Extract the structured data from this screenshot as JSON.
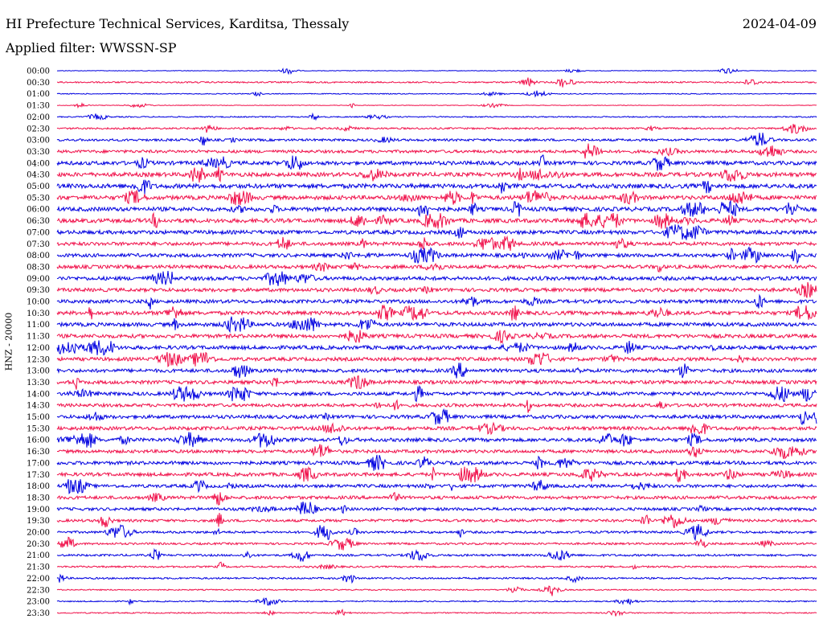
{
  "header": {
    "station": "HI Prefecture Technical Services, Karditsa, Thessaly",
    "date": "2024-04-09",
    "filter": "Applied filter: WWSSN-SP"
  },
  "axis": {
    "channel_label": "HNZ - 20000"
  },
  "colors": {
    "trace_a": "#0000e0",
    "trace_b": "#f0104a"
  },
  "rows": [
    "00:00",
    "00:30",
    "01:00",
    "01:30",
    "02:00",
    "02:30",
    "03:00",
    "03:30",
    "04:00",
    "04:30",
    "05:00",
    "05:30",
    "06:00",
    "06:30",
    "07:00",
    "07:30",
    "08:00",
    "08:30",
    "09:00",
    "09:30",
    "10:00",
    "10:30",
    "11:00",
    "11:30",
    "12:00",
    "12:30",
    "13:00",
    "13:30",
    "14:00",
    "14:30",
    "15:00",
    "15:30",
    "16:00",
    "16:30",
    "17:00",
    "17:30",
    "18:00",
    "18:30",
    "19:00",
    "19:30",
    "20:00",
    "20:30",
    "21:00",
    "21:30",
    "22:00",
    "22:30",
    "23:00",
    "23:30"
  ],
  "activity": [
    0.4,
    1.0,
    0.6,
    0.4,
    0.8,
    1.2,
    1.6,
    2.0,
    2.6,
    2.8,
    3.0,
    2.8,
    2.8,
    2.8,
    2.6,
    2.4,
    2.4,
    2.4,
    2.6,
    2.4,
    2.4,
    2.6,
    2.6,
    2.6,
    2.6,
    2.4,
    2.4,
    2.4,
    2.4,
    2.2,
    2.4,
    2.4,
    2.4,
    2.2,
    2.4,
    2.4,
    2.2,
    2.2,
    2.0,
    1.8,
    1.6,
    1.4,
    1.4,
    1.2,
    1.2,
    0.8,
    0.8,
    0.8
  ]
}
